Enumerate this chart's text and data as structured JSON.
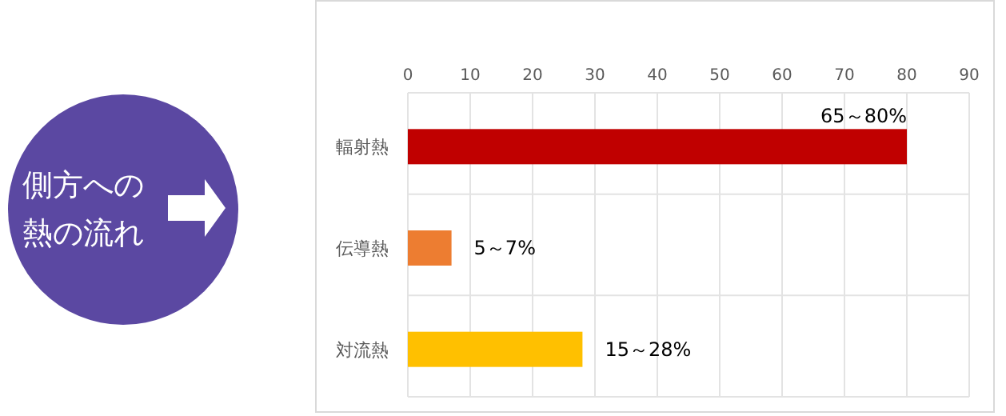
{
  "chart_data": {
    "type": "bar",
    "orientation": "horizontal",
    "title": "側方への熱の流れ",
    "categories": [
      "輻射熱",
      "伝導熱",
      "対流熱"
    ],
    "values": [
      80,
      7,
      28
    ],
    "colors": [
      "#c00000",
      "#ed7d31",
      "#ffc000"
    ],
    "value_labels": [
      "65～80%",
      "5～7%",
      "15～28%"
    ],
    "xlim": [
      0,
      90
    ],
    "xticks": [
      0,
      10,
      20,
      30,
      40,
      50,
      60,
      70,
      80,
      90
    ],
    "grid": true
  }
}
